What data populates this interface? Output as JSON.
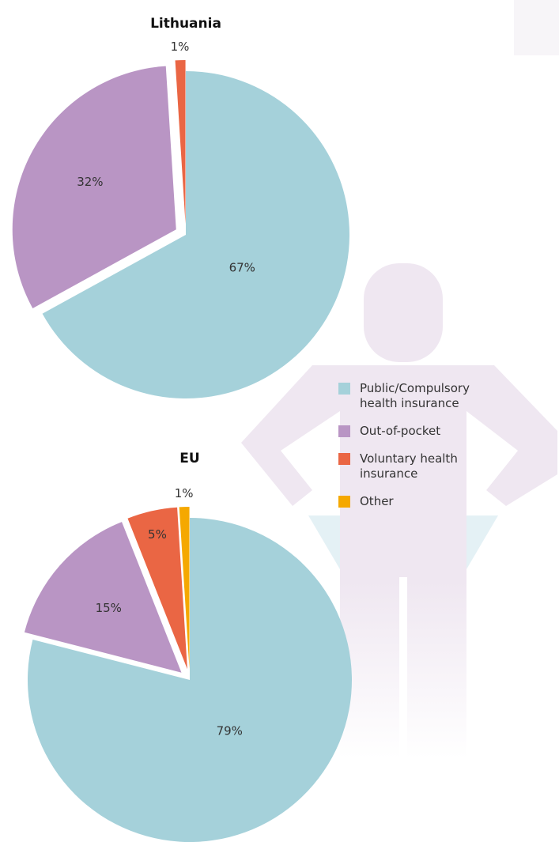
{
  "chart_data": [
    {
      "type": "pie",
      "title": "Lithuania",
      "categories": [
        "Public/Compulsory health insurance",
        "Out-of-pocket",
        "Voluntary health insurance"
      ],
      "values": [
        67,
        32,
        1
      ],
      "value_labels": [
        "67%",
        "32%",
        "1%"
      ],
      "colors": [
        "#a5d1da",
        "#b995c4",
        "#ea6644"
      ]
    },
    {
      "type": "pie",
      "title": "EU",
      "categories": [
        "Public/Compulsory health insurance",
        "Out-of-pocket",
        "Voluntary health insurance",
        "Other"
      ],
      "values": [
        79,
        15,
        5,
        1
      ],
      "value_labels": [
        "79%",
        "15%",
        "5%",
        "1%"
      ],
      "colors": [
        "#a5d1da",
        "#b995c4",
        "#ea6644",
        "#f5a800"
      ],
      "legend": "right"
    }
  ]
}
